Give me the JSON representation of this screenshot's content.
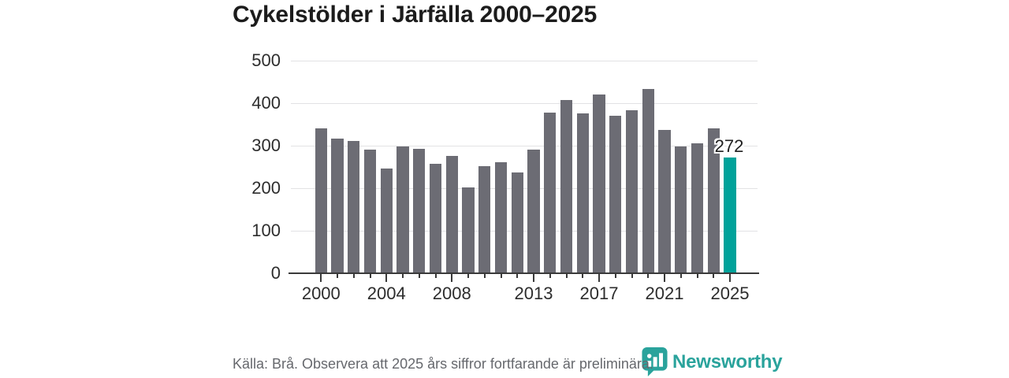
{
  "header": {
    "title": "Cykelstölder i Järfälla 2000–2025"
  },
  "chart_data": {
    "type": "bar",
    "title": "Cykelstölder i Järfälla 2000–2025",
    "xlabel": "",
    "ylabel": "",
    "categories": [
      "2000",
      "2001",
      "2002",
      "2003",
      "2004",
      "2005",
      "2006",
      "2007",
      "2008",
      "2009",
      "2010",
      "2011",
      "2012",
      "2013",
      "2014",
      "2015",
      "2016",
      "2017",
      "2018",
      "2019",
      "2020",
      "2021",
      "2022",
      "2023",
      "2024",
      "2025"
    ],
    "values": [
      340,
      317,
      311,
      291,
      247,
      298,
      293,
      258,
      276,
      202,
      251,
      261,
      237,
      290,
      377,
      408,
      376,
      420,
      371,
      383,
      434,
      337,
      298,
      305,
      340,
      272
    ],
    "ylim": [
      0,
      500
    ],
    "y_ticks": [
      0,
      100,
      200,
      300,
      400,
      500
    ],
    "x_labeled_years": [
      "2000",
      "2004",
      "2008",
      "2013",
      "2017",
      "2021",
      "2025"
    ],
    "grid": true,
    "legend": false,
    "bar_color": "#6c6c74",
    "highlight_year": "2025",
    "highlight_color": "#00a29a",
    "last_value_label": "272"
  },
  "footer": {
    "source_note": "Källa: Brå. Observera att 2025 års siffror fortfarande är preliminära.",
    "logo": {
      "text": "Newsworthy",
      "icon": "newsworthy-speech-bubble-chart-icon",
      "color": "#2aa39c"
    }
  }
}
